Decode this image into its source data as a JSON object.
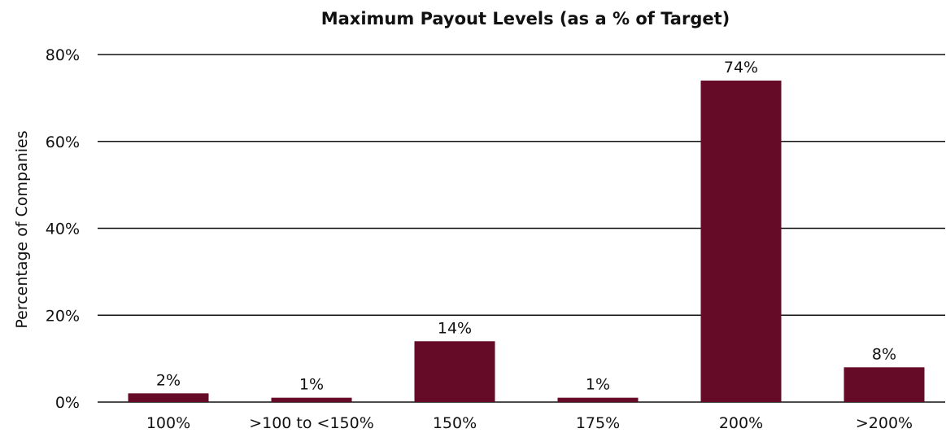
{
  "chart_data": {
    "type": "bar",
    "title": "Maximum Payout Levels (as a % of Target)",
    "ylabel": "Percentage of  Companies",
    "xlabel": "",
    "categories": [
      "100%",
      ">100 to <150%",
      "150%",
      "175%",
      "200%",
      ">200%"
    ],
    "values": [
      2,
      1,
      14,
      1,
      74,
      8
    ],
    "data_labels": [
      "2%",
      "1%",
      "14%",
      "1%",
      "74%",
      "8%"
    ],
    "ylim": [
      0,
      80
    ],
    "yticks": [
      0,
      20,
      40,
      60,
      80
    ],
    "ytick_labels": [
      "0%",
      "20%",
      "40%",
      "60%",
      "80%"
    ],
    "grid": true,
    "legend": "none",
    "bar_color": "#650a27"
  }
}
